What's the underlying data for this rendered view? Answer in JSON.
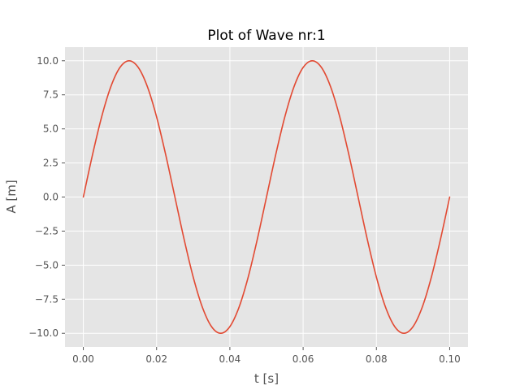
{
  "chart_data": {
    "type": "line",
    "title": "Plot of Wave nr:1",
    "xlabel": "t [s]",
    "ylabel": "A [m]",
    "xlim": [
      -0.005,
      0.105
    ],
    "ylim": [
      -11,
      11
    ],
    "x_ticks": [
      0.0,
      0.02,
      0.04,
      0.06,
      0.08,
      0.1
    ],
    "x_tick_labels": [
      "0.00",
      "0.02",
      "0.04",
      "0.06",
      "0.08",
      "0.10"
    ],
    "y_ticks": [
      10.0,
      7.5,
      5.0,
      2.5,
      0.0,
      -2.5,
      -5.0,
      -7.5,
      -10.0
    ],
    "y_tick_labels": [
      "10.0",
      "7.5",
      "5.0",
      "2.5",
      "0.0",
      "−2.5",
      "−5.0",
      "−7.5",
      "−10.0"
    ],
    "grid": true,
    "background_color": "#e5e5e5",
    "grid_color": "#ffffff",
    "series": [
      {
        "color": "#e24a33",
        "x": [
          0.0,
          0.0025,
          0.005,
          0.0075,
          0.01,
          0.0125,
          0.015,
          0.0175,
          0.02,
          0.0225,
          0.025,
          0.0275,
          0.03,
          0.0325,
          0.035,
          0.0375,
          0.04,
          0.0425,
          0.045,
          0.0475,
          0.05,
          0.0525,
          0.055,
          0.0575,
          0.06,
          0.0625,
          0.065,
          0.0675,
          0.07,
          0.0725,
          0.075,
          0.0775,
          0.08,
          0.0825,
          0.085,
          0.0875,
          0.09,
          0.0925,
          0.095,
          0.0975,
          0.1
        ],
        "y": [
          0.0,
          3.09,
          5.88,
          8.09,
          9.51,
          10.0,
          9.51,
          8.09,
          5.88,
          3.09,
          0.0,
          -3.09,
          -5.88,
          -8.09,
          -9.51,
          -10.0,
          -9.51,
          -8.09,
          -5.88,
          -3.09,
          0.0,
          3.09,
          5.88,
          8.09,
          9.51,
          10.0,
          9.51,
          8.09,
          5.88,
          3.09,
          0.0,
          -3.09,
          -5.88,
          -8.09,
          -9.51,
          -10.0,
          -9.51,
          -8.09,
          -5.88,
          -3.09,
          0.0
        ]
      }
    ]
  }
}
